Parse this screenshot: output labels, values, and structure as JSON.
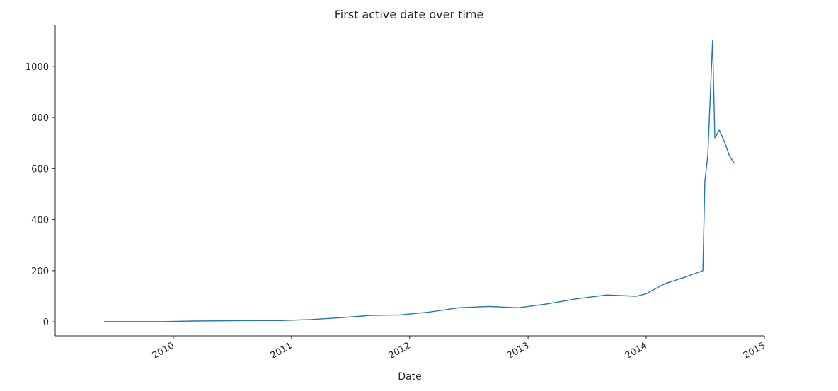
{
  "chart_data": {
    "type": "line",
    "title": "First active date over time",
    "xlabel": "Date",
    "ylabel": "",
    "xlim": [
      "2009-01-01",
      "2015-01-01"
    ],
    "ylim": [
      -55,
      1160
    ],
    "x_ticks": [
      "2010",
      "2011",
      "2012",
      "2013",
      "2014",
      "2015"
    ],
    "y_ticks": [
      0,
      200,
      400,
      600,
      800,
      1000
    ],
    "grid": false,
    "legend": "none",
    "color": "#1f77b4",
    "series": [
      {
        "points": [
          [
            "2009-06-01",
            1
          ],
          [
            "2009-09-01",
            1
          ],
          [
            "2009-12-01",
            1
          ],
          [
            "2010-03-01",
            3
          ],
          [
            "2010-06-01",
            4
          ],
          [
            "2010-09-01",
            5
          ],
          [
            "2010-12-01",
            5
          ],
          [
            "2011-03-01",
            9
          ],
          [
            "2011-06-01",
            16
          ],
          [
            "2011-09-01",
            25
          ],
          [
            "2011-12-01",
            27
          ],
          [
            "2012-03-01",
            38
          ],
          [
            "2012-06-01",
            55
          ],
          [
            "2012-09-01",
            60
          ],
          [
            "2012-12-01",
            55
          ],
          [
            "2013-03-01",
            70
          ],
          [
            "2013-06-01",
            90
          ],
          [
            "2013-09-01",
            105
          ],
          [
            "2013-12-01",
            100
          ],
          [
            "2014-01-01",
            110
          ],
          [
            "2014-03-01",
            150
          ],
          [
            "2014-05-01",
            175
          ],
          [
            "2014-06-25",
            200
          ],
          [
            "2014-07-01",
            550
          ],
          [
            "2014-07-10",
            650
          ],
          [
            "2014-07-20",
            950
          ],
          [
            "2014-07-25",
            1100
          ],
          [
            "2014-08-01",
            720
          ],
          [
            "2014-08-15",
            750
          ],
          [
            "2014-09-01",
            700
          ],
          [
            "2014-09-15",
            650
          ],
          [
            "2014-09-30",
            620
          ]
        ]
      }
    ]
  }
}
